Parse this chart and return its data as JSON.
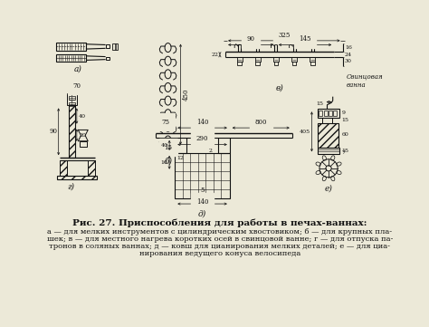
{
  "title": "Рис. 27. Приспособления для работы в печах-ваннах:",
  "caption_lines": [
    "а — для мелких инструментов с цилиндрическим хвостовиком; б — для крупных пла-",
    "шек; в — для местного нагрева коротких осей в свинцовой ванне; г — для отпуска па-",
    "тронов в соляных ваннах; д — ковш для цианирования мелких деталей; е — для циа-",
    "нирования ведущего конуса велосипеда"
  ],
  "bg_color": "#ece9d8",
  "line_color": "#111111"
}
